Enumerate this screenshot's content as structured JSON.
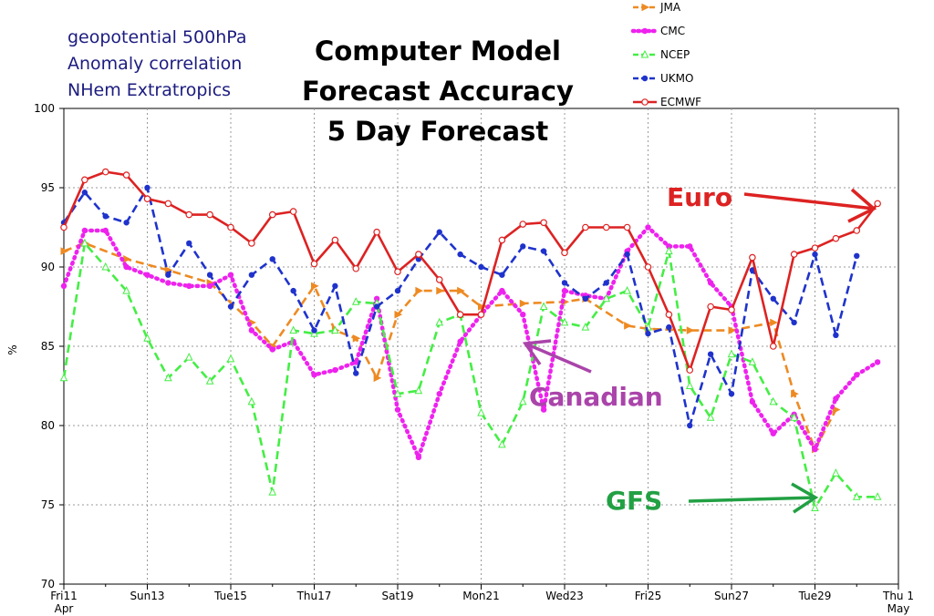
{
  "info_lines": [
    "geopotential 500hPa",
    "Anomaly correlation",
    "NHem Extratropics"
  ],
  "title_lines": [
    "Computer Model",
    "Forecast Accuracy",
    "5 Day Forecast"
  ],
  "colors": {
    "JMA": "#ee8a22",
    "CMC": "#ee22ee",
    "NCEP": "#44ee44",
    "UKMO": "#1f33cc",
    "ECMWF": "#dd2222",
    "sunday": "#cc2222",
    "euro_annot": "#dd2222",
    "canadian_annot": "#aa44aa",
    "gfs_annot": "#22a044"
  },
  "annotations": {
    "euro": "Euro",
    "canadian": "Canadian",
    "gfs": "GFS"
  },
  "chart_data": {
    "type": "line",
    "ylabel": "%",
    "ylim": [
      70,
      100
    ],
    "yticks": [
      70,
      75,
      80,
      85,
      90,
      95,
      100
    ],
    "grid": true,
    "legend": "top-right",
    "x_tick_labels": [
      {
        "day": 0,
        "label": "Fri11",
        "sub": "Apr",
        "sunday": false
      },
      {
        "day": 2,
        "label": "Sun13",
        "sub": "",
        "sunday": true
      },
      {
        "day": 4,
        "label": "Tue15",
        "sub": "",
        "sunday": false
      },
      {
        "day": 6,
        "label": "Thu17",
        "sub": "",
        "sunday": false
      },
      {
        "day": 8,
        "label": "Sat19",
        "sub": "",
        "sunday": false
      },
      {
        "day": 10,
        "label": "Mon21",
        "sub": "",
        "sunday": false
      },
      {
        "day": 12,
        "label": "Wed23",
        "sub": "",
        "sunday": false
      },
      {
        "day": 14,
        "label": "Fri25",
        "sub": "",
        "sunday": false
      },
      {
        "day": 16,
        "label": "Sun27",
        "sub": "",
        "sunday": true
      },
      {
        "day": 18,
        "label": "Tue29",
        "sub": "",
        "sunday": false
      },
      {
        "day": 20,
        "label": "Thu 1",
        "sub": "May",
        "sunday": false
      }
    ],
    "x_range": [
      0,
      20
    ],
    "series": [
      {
        "name": "JMA",
        "marker": "triangle-right",
        "x": [
          0,
          0.5,
          1.5,
          2.5,
          3.5,
          4.5,
          5,
          6,
          6.5,
          7,
          7.5,
          8,
          8.5,
          9,
          9.5,
          10,
          11,
          12,
          12.5,
          13.5,
          14,
          15,
          16,
          17,
          17.5,
          18,
          18.5
        ],
        "y": [
          91,
          91.5,
          90.5,
          89.8,
          89,
          86.5,
          85,
          88.8,
          86,
          85.5,
          83,
          87,
          88.5,
          88.5,
          88.5,
          87.5,
          87.7,
          87.8,
          88,
          86.3,
          86.1,
          86,
          86,
          86.5,
          82,
          78.5,
          81
        ]
      },
      {
        "name": "CMC",
        "marker": "circle",
        "x": [
          0,
          0.5,
          1,
          1.5,
          2,
          2.5,
          3,
          3.5,
          4,
          4.5,
          5,
          5.5,
          6,
          6.5,
          7,
          7.5,
          8,
          8.5,
          9,
          9.5,
          10,
          10.5,
          11,
          11.5,
          12,
          12.5,
          13,
          13.5,
          14,
          14.5,
          15,
          15.5,
          16,
          16.5,
          17,
          17.5,
          18,
          18.5,
          19,
          19.5
        ],
        "y": [
          88.8,
          92.3,
          92.3,
          90,
          89.5,
          89,
          88.8,
          88.8,
          89.5,
          86,
          84.8,
          85.3,
          83.2,
          83.5,
          84,
          88,
          81,
          78,
          82,
          85.3,
          87,
          88.5,
          87,
          81,
          88.5,
          88.2,
          88,
          91,
          92.5,
          91.3,
          91.3,
          89,
          87.5,
          81.5,
          79.5,
          80.7,
          78.5,
          81.7,
          83.2,
          84
        ]
      },
      {
        "name": "NCEP",
        "marker": "triangle-up",
        "x": [
          0,
          0.5,
          1,
          1.5,
          2,
          2.5,
          3,
          3.5,
          4,
          4.5,
          5,
          5.5,
          6,
          6.5,
          7,
          7.5,
          8,
          8.5,
          9,
          9.5,
          10,
          10.5,
          11,
          11.5,
          12,
          12.5,
          13,
          13.5,
          14,
          14.5,
          15,
          15.5,
          16,
          16.5,
          17,
          17.5,
          18,
          18.5,
          19,
          19.5
        ],
        "y": [
          83,
          91.5,
          90,
          88.5,
          85.5,
          83,
          84.3,
          82.8,
          84.2,
          81.5,
          75.8,
          86,
          85.8,
          86,
          87.8,
          87.7,
          82,
          82.2,
          86.5,
          87,
          80.8,
          78.8,
          81.5,
          87.5,
          86.5,
          86.2,
          88,
          88.5,
          86.2,
          91,
          82.5,
          80.5,
          84.5,
          84,
          81.5,
          80.5,
          74.8,
          77,
          75.5,
          75.5
        ]
      },
      {
        "name": "UKMO",
        "marker": "circle",
        "x": [
          0,
          0.5,
          1,
          1.5,
          2,
          2.5,
          3,
          3.5,
          4,
          4.5,
          5,
          5.5,
          6,
          6.5,
          7,
          7.5,
          8,
          8.5,
          9,
          9.5,
          10,
          10.5,
          11,
          11.5,
          12,
          12.5,
          13,
          13.5,
          14,
          14.5,
          15,
          15.5,
          16,
          16.5,
          17,
          17.5,
          18,
          18.5,
          19
        ],
        "y": [
          92.8,
          94.7,
          93.2,
          92.8,
          95,
          89.5,
          91.5,
          89.5,
          87.5,
          89.5,
          90.5,
          88.5,
          86,
          88.8,
          83.3,
          87.5,
          88.5,
          90.5,
          92.2,
          90.8,
          90,
          89.5,
          91.3,
          91,
          89,
          88,
          89,
          90.8,
          85.8,
          86.2,
          80,
          84.5,
          82,
          89.8,
          88,
          86.5,
          90.8,
          85.7,
          90.7
        ]
      },
      {
        "name": "ECMWF",
        "marker": "circle",
        "x": [
          0,
          0.5,
          1,
          1.5,
          2,
          2.5,
          3,
          3.5,
          4,
          4.5,
          5,
          5.5,
          6,
          6.5,
          7,
          7.5,
          8,
          8.5,
          9,
          9.5,
          10,
          10.5,
          11,
          11.5,
          12,
          12.5,
          13,
          13.5,
          14,
          14.5,
          15,
          15.5,
          16,
          16.5,
          17,
          17.5,
          18,
          18.5,
          19,
          19.5
        ],
        "y": [
          92.5,
          95.5,
          96,
          95.8,
          94.3,
          94,
          93.3,
          93.3,
          92.5,
          91.5,
          93.3,
          93.5,
          90.2,
          91.7,
          89.9,
          92.2,
          89.7,
          90.8,
          89.2,
          87,
          87,
          91.7,
          92.7,
          92.8,
          90.9,
          92.5,
          92.5,
          92.5,
          90,
          87,
          83.5,
          87.5,
          87.3,
          90.6,
          85,
          90.8,
          91.2,
          91.8,
          92.3,
          94
        ]
      }
    ]
  }
}
